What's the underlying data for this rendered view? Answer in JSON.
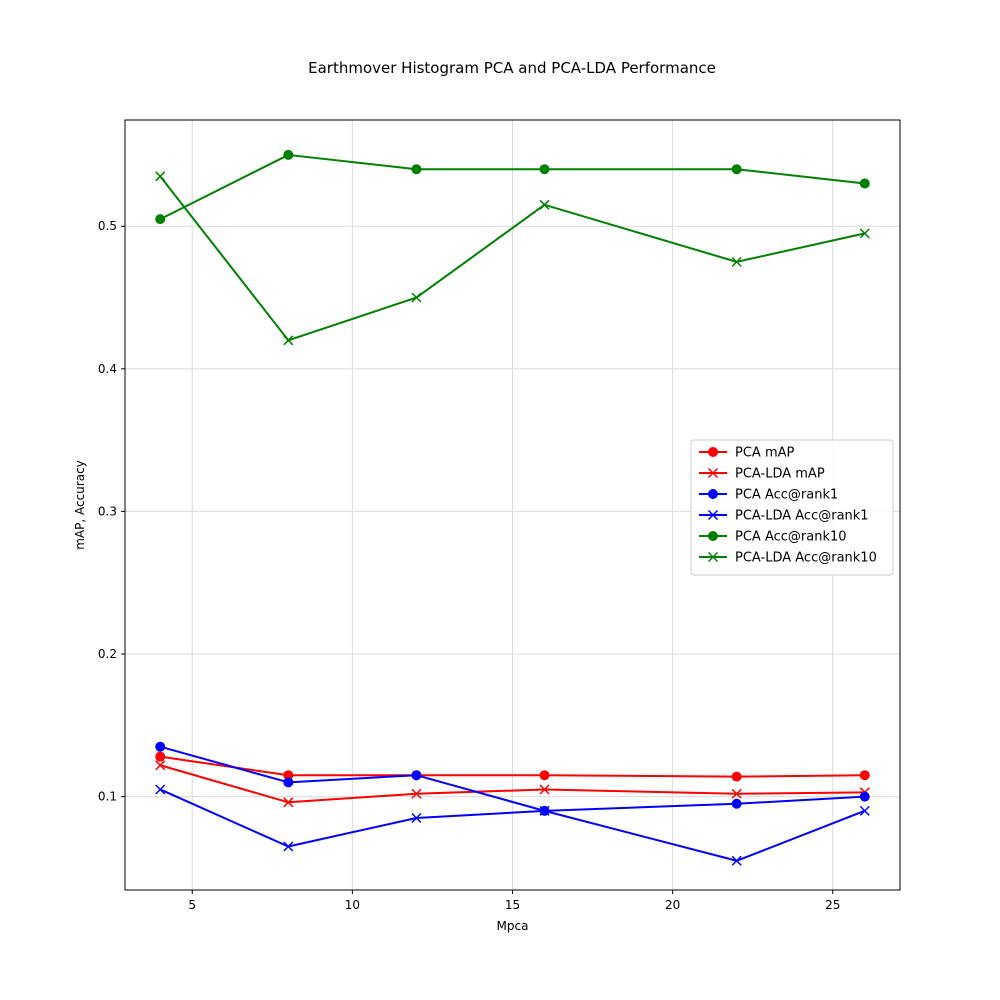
{
  "chart_data": {
    "type": "line",
    "title": "Earthmover Histogram PCA and PCA-LDA Performance",
    "xlabel": "Mpca",
    "ylabel": "mAP, Accuracy",
    "xlim": [
      2.9,
      27.1
    ],
    "ylim": [
      0.0345,
      0.5745
    ],
    "xticks": [
      5,
      10,
      15,
      20,
      25
    ],
    "yticks": [
      0.1,
      0.2,
      0.3,
      0.4,
      0.5
    ],
    "grid": true,
    "legend_position": "center-right",
    "x": [
      4,
      8,
      12,
      16,
      22,
      26
    ],
    "series": [
      {
        "name": "PCA mAP",
        "color": "#ff0000",
        "marker": "circle",
        "values": [
          0.128,
          0.115,
          0.115,
          0.115,
          0.114,
          0.115
        ]
      },
      {
        "name": "PCA-LDA mAP",
        "color": "#ff0000",
        "marker": "x",
        "values": [
          0.122,
          0.096,
          0.102,
          0.105,
          0.102,
          0.103
        ]
      },
      {
        "name": "PCA Acc@rank1",
        "color": "#0000ff",
        "marker": "circle",
        "values": [
          0.135,
          0.11,
          0.115,
          0.09,
          0.095,
          0.1
        ]
      },
      {
        "name": "PCA-LDA Acc@rank1",
        "color": "#0000ff",
        "marker": "x",
        "values": [
          0.105,
          0.065,
          0.085,
          0.09,
          0.055,
          0.09
        ]
      },
      {
        "name": "PCA Acc@rank10",
        "color": "#008000",
        "marker": "circle",
        "values": [
          0.505,
          0.55,
          0.54,
          0.54,
          0.54,
          0.53
        ]
      },
      {
        "name": "PCA-LDA Acc@rank10",
        "color": "#008000",
        "marker": "x",
        "values": [
          0.535,
          0.42,
          0.45,
          0.515,
          0.475,
          0.495
        ]
      }
    ]
  }
}
